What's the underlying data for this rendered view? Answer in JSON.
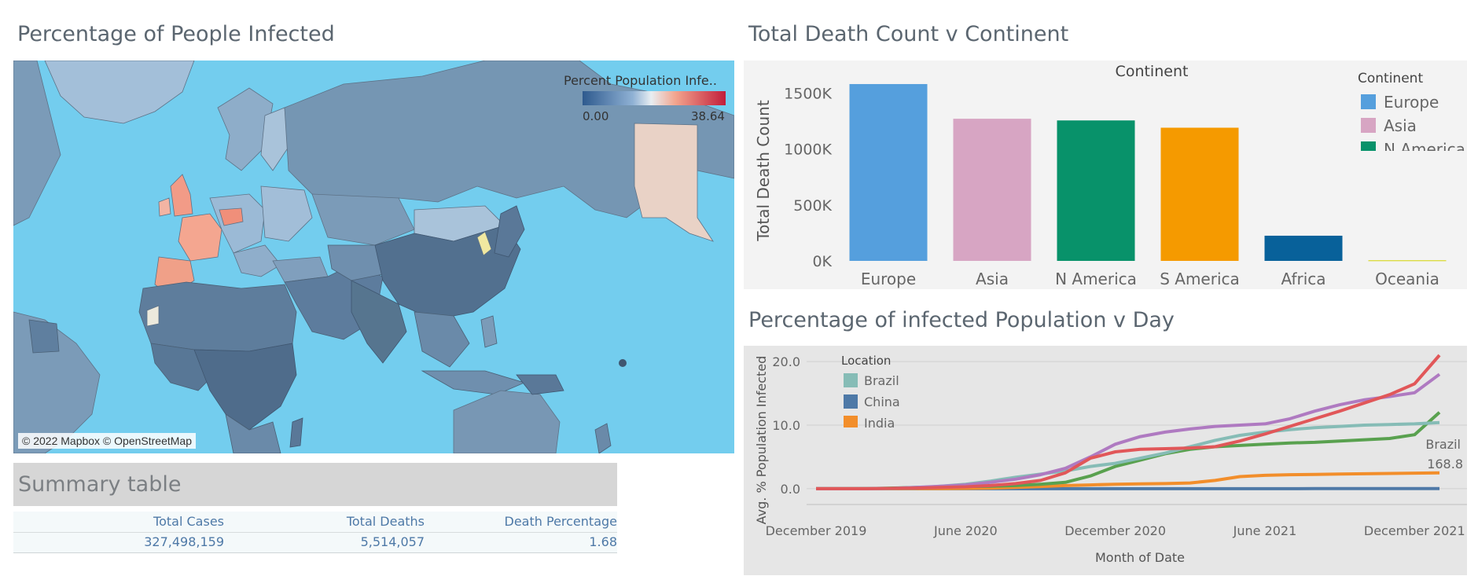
{
  "map": {
    "title": "Percentage of People Infected",
    "legend_title": "Percent Population Infe..",
    "legend_min": "0.00",
    "legend_max": "38.64",
    "attribution": "© 2022 Mapbox © OpenStreetMap",
    "colors": {
      "ocean": "#73cdee",
      "low": "#2e5a8e",
      "mid": "#e8eef2",
      "high": "#c21d3a"
    }
  },
  "summary": {
    "title": "Summary table",
    "headers": [
      "Total Cases",
      "Total Deaths",
      "Death Percentage"
    ],
    "values": [
      "327,498,159",
      "5,514,057",
      "1.68"
    ]
  },
  "bar_chart_title": "Total Death Count v Continent",
  "line_chart_title": "Percentage of infected Population v Day",
  "chart_data": [
    {
      "type": "bar",
      "title": "Continent",
      "ylabel": "Total Death Count",
      "categories": [
        "Europe",
        "Asia",
        "N America",
        "S America",
        "Africa",
        "Oceania"
      ],
      "values": [
        1580000,
        1270000,
        1255000,
        1190000,
        225000,
        5000
      ],
      "colors": [
        "#559fdd",
        "#d7a5c3",
        "#08926a",
        "#f59a00",
        "#08619a",
        "#d2d200"
      ],
      "yticks": [
        "0K",
        "500K",
        "1000K",
        "1500K"
      ],
      "ytick_values": [
        0,
        500000,
        1000000,
        1500000
      ],
      "ylim": [
        0,
        1650000
      ],
      "legend": {
        "title": "Continent",
        "items": [
          "Europe",
          "Asia",
          "N America"
        ],
        "placement": "top-right"
      }
    },
    {
      "type": "line",
      "xlabel": "Month of Date",
      "ylabel": "Avg. % Population Infected",
      "xticks": [
        "December 2019",
        "June 2020",
        "December 2020",
        "June 2021",
        "December 2021"
      ],
      "yticks": [
        "0.0",
        "10.0",
        "20.0"
      ],
      "ylim": [
        -1,
        21.5
      ],
      "x": [
        "2019-12",
        "2020-01",
        "2020-02",
        "2020-03",
        "2020-04",
        "2020-05",
        "2020-06",
        "2020-07",
        "2020-08",
        "2020-09",
        "2020-10",
        "2020-11",
        "2020-12",
        "2021-01",
        "2021-02",
        "2021-03",
        "2021-04",
        "2021-05",
        "2021-06",
        "2021-07",
        "2021-08",
        "2021-09",
        "2021-10",
        "2021-11",
        "2021-12",
        "2022-01"
      ],
      "series": [
        {
          "name": "",
          "color": "#e15759",
          "values": [
            0,
            0,
            0,
            0.05,
            0.1,
            0.2,
            0.3,
            0.5,
            0.8,
            1.3,
            2.5,
            4.8,
            5.8,
            6.2,
            6.3,
            6.4,
            6.6,
            7.5,
            8.6,
            9.8,
            11.0,
            12.2,
            13.5,
            14.8,
            16.5,
            21.0
          ]
        },
        {
          "name": "",
          "color": "#af7ac1",
          "values": [
            0,
            0,
            0,
            0.05,
            0.2,
            0.4,
            0.6,
            1.0,
            1.5,
            2.2,
            3.2,
            5.0,
            7.0,
            8.2,
            8.9,
            9.4,
            9.8,
            10.0,
            10.2,
            11.0,
            12.2,
            13.2,
            14.0,
            14.5,
            15.1,
            18.0
          ]
        },
        {
          "name": "Brazil",
          "color": "#86bcb6",
          "values": [
            0,
            0,
            0,
            0.02,
            0.1,
            0.4,
            0.7,
            1.2,
            1.8,
            2.3,
            2.8,
            3.5,
            4.0,
            4.8,
            5.6,
            6.6,
            7.6,
            8.4,
            8.9,
            9.3,
            9.6,
            9.8,
            10.0,
            10.1,
            10.2,
            10.4
          ]
        },
        {
          "name": "",
          "color": "#59a14f",
          "values": [
            0,
            0,
            0.02,
            0.1,
            0.2,
            0.3,
            0.35,
            0.4,
            0.5,
            0.7,
            1.0,
            2.0,
            3.5,
            4.5,
            5.5,
            6.2,
            6.6,
            6.8,
            7.0,
            7.2,
            7.3,
            7.5,
            7.7,
            7.9,
            8.5,
            12.0
          ]
        },
        {
          "name": "India",
          "color": "#f28e2b",
          "values": [
            0,
            0,
            0,
            0,
            0.01,
            0.03,
            0.05,
            0.1,
            0.2,
            0.35,
            0.5,
            0.6,
            0.7,
            0.75,
            0.8,
            0.9,
            1.3,
            1.9,
            2.1,
            2.2,
            2.25,
            2.3,
            2.35,
            2.4,
            2.45,
            2.5
          ]
        },
        {
          "name": "China",
          "color": "#4e79a7",
          "values": [
            0,
            0,
            0.002,
            0.006,
            0.006,
            0.006,
            0.006,
            0.006,
            0.006,
            0.006,
            0.006,
            0.006,
            0.006,
            0.007,
            0.007,
            0.007,
            0.007,
            0.007,
            0.007,
            0.007,
            0.008,
            0.008,
            0.008,
            0.008,
            0.008,
            0.01
          ]
        }
      ],
      "legend": {
        "title": "Location",
        "items": [
          {
            "name": "Brazil",
            "color": "#86bcb6"
          },
          {
            "name": "China",
            "color": "#4e79a7"
          },
          {
            "name": "India",
            "color": "#f28e2b"
          }
        ],
        "placement": "top-left"
      },
      "annotation": {
        "label": "Brazil",
        "value": "168.8"
      }
    }
  ]
}
